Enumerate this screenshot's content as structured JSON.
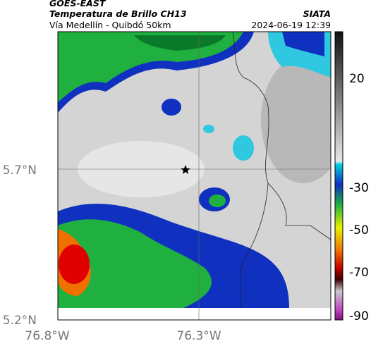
{
  "header": {
    "source": "GOES-EAST",
    "title": "Temperatura de Brillo CH13",
    "subtitle": "Vía Medellín - Quibdó 50km",
    "org": "SIATA",
    "datetime": "2024-06-19 12:39"
  },
  "axes": {
    "y_ticks": [
      "5.7°N",
      "5.2°N"
    ],
    "x_ticks": [
      "76.8°W",
      "76.3°W"
    ]
  },
  "colorbar": {
    "ticks": [
      "20",
      "-30",
      "-50",
      "-70",
      "-90"
    ]
  }
}
